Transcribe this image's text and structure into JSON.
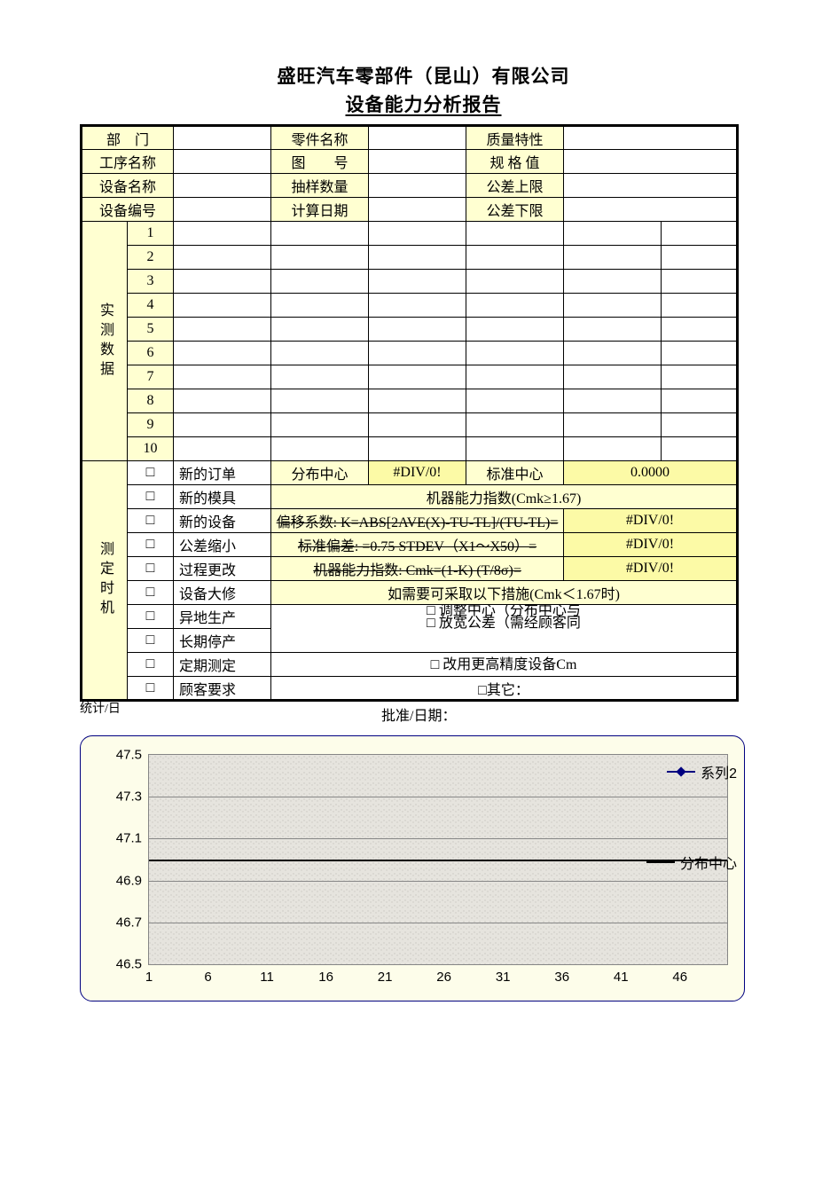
{
  "header": {
    "company": "盛旺汽车零部件（昆山）有限公司",
    "report_title": "设备能力分析报告"
  },
  "labels": {
    "department": "部　门",
    "process_name": "工序名称",
    "equipment_name": "设备名称",
    "equipment_no": "设备编号",
    "part_name": "零件名称",
    "drawing_no": "图　　号",
    "sample_qty": "抽样数量",
    "calc_date": "计算日期",
    "quality_char": "质量特性",
    "spec_value": "规 格 值",
    "usl": "公差上限",
    "lsl": "公差下限",
    "measured_data": "实测数据",
    "timing": "测定时机",
    "dist_center": "分布心",
    "dist_center_full": "分布中心",
    "std_center": "标准中心",
    "cmk_title": "机器能力指数(Cmk≥1.67)",
    "k_formula": "偏移系数: K=ABS[2AVE(X)-TU-TL]/(TU-TL)=",
    "s_formula": "标准偏差:        =0.75 STDEV（X1～X50）=",
    "cmk_formula": "机器能力指数:            Cmk=(1-K) (T/8σ)=",
    "measures_title": "如需要可采取以下措施(Cmk＜1.67时)",
    "measure1": "□ 调整中心（分布中心与",
    "measure2": "□ 放宽公差（需经顾客同",
    "measure3": "□ 改用更高精度设备Cm",
    "measure4": "□其它：",
    "stats_date": "统计/日",
    "approve_date": "批准/日期："
  },
  "field_values": {
    "department": "",
    "process_name": "",
    "equipment_name": "",
    "equipment_no": "",
    "part_name": "",
    "drawing_no": "",
    "sample_qty": "",
    "calc_date": "",
    "quality_char": "",
    "spec_value": "",
    "usl": "",
    "lsl": ""
  },
  "data_rows": [
    "1",
    "2",
    "3",
    "4",
    "5",
    "6",
    "7",
    "8",
    "9",
    "10"
  ],
  "timing_options": [
    "新的订单",
    "新的模具",
    "新的设备",
    "公差缩小",
    "过程更改",
    "设备大修",
    "异地生产",
    "长期停产",
    "定期测定",
    "顾客要求"
  ],
  "calc": {
    "dist_center_val": "#DIV/0!",
    "std_center_val": "0.0000",
    "k_val": "#DIV/0!",
    "s_val": "#DIV/0!",
    "cmk_val": "#DIV/0!"
  },
  "chart": {
    "type": "line",
    "background": "#fdfdea",
    "border_color": "#000080",
    "plot_bg": "#e6e4de",
    "grid_color": "#878787",
    "ylim": [
      46.5,
      47.5
    ],
    "ytick_step": 0.2,
    "yticks": [
      "47.5",
      "47.3",
      "47.1",
      "46.9",
      "46.7",
      "46.5"
    ],
    "xlim": [
      1,
      50
    ],
    "xticks": [
      "1",
      "6",
      "11",
      "16",
      "21",
      "26",
      "31",
      "36",
      "41",
      "46"
    ],
    "center_line_y": 47.0,
    "series_color": "#000080",
    "legend_series": "系列2",
    "legend_center": "分布中心"
  },
  "colors": {
    "label_bg": "#ffffd1",
    "highlight_bg": "#fcfaa6",
    "outer_border": "#000000"
  }
}
